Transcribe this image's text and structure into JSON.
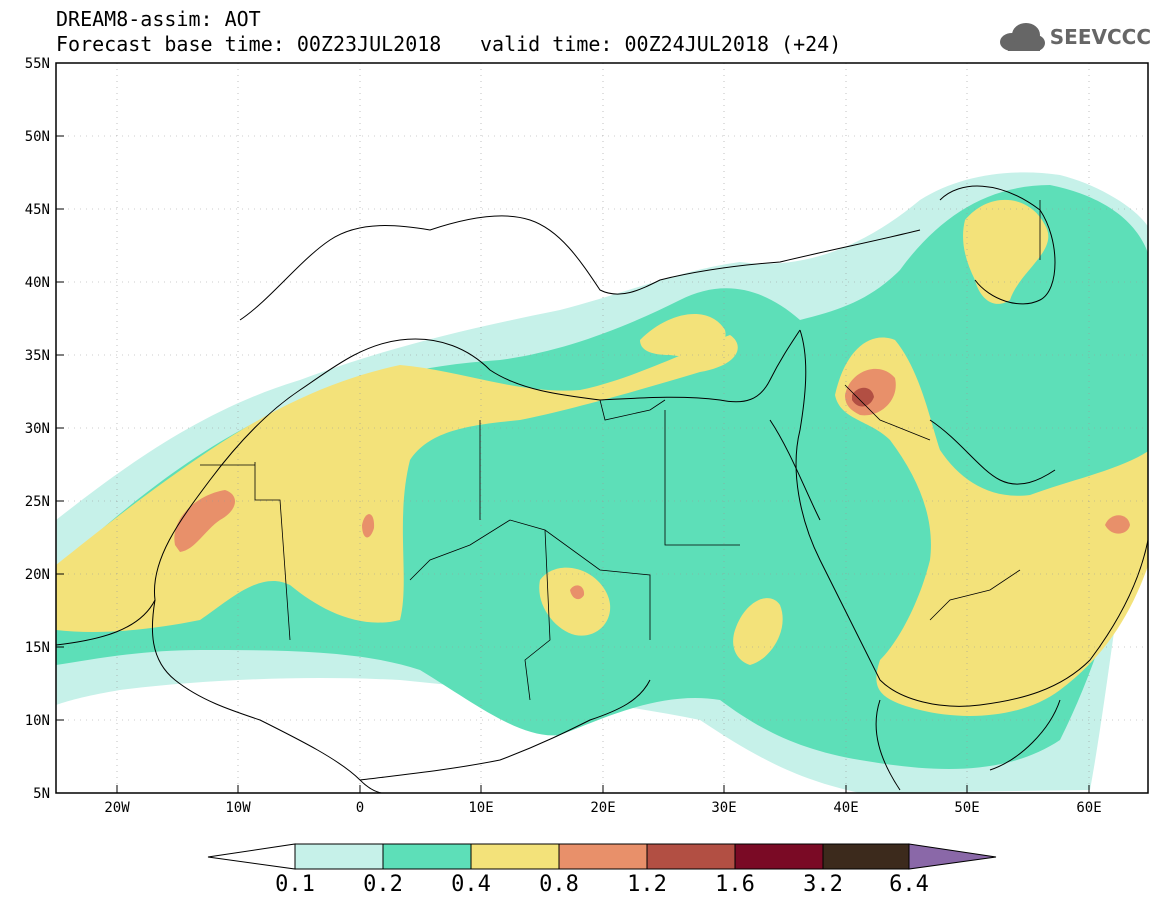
{
  "header": {
    "title": "DREAM8-assim: AOT",
    "base_time": "Forecast base time: 00Z23JUL2018",
    "valid_time": "valid time: 00Z24JUL2018 (+24)",
    "logo": "SEEVCCC"
  },
  "axes": {
    "lat_labels": [
      "55N",
      "50N",
      "45N",
      "40N",
      "35N",
      "30N",
      "25N",
      "20N",
      "15N",
      "10N",
      "5N"
    ],
    "lon_labels": [
      "20W",
      "10W",
      "0",
      "10E",
      "20E",
      "30E",
      "40E",
      "50E",
      "60E"
    ]
  },
  "colorbar": {
    "labels": [
      "0.1",
      "0.2",
      "0.4",
      "0.8",
      "1.2",
      "1.6",
      "3.2",
      "6.4"
    ],
    "colors": [
      "#ffffff",
      "#c6f1e9",
      "#5ddfb8",
      "#f3e27a",
      "#e8906a",
      "#b24f43",
      "#7a0a25",
      "#3c2a1c",
      "#8a68a8"
    ]
  },
  "colors": {
    "c01": "#c6f1e9",
    "c02": "#5ddfb8",
    "c04": "#f3e27a",
    "c08": "#e8906a",
    "c12": "#b24f43"
  }
}
